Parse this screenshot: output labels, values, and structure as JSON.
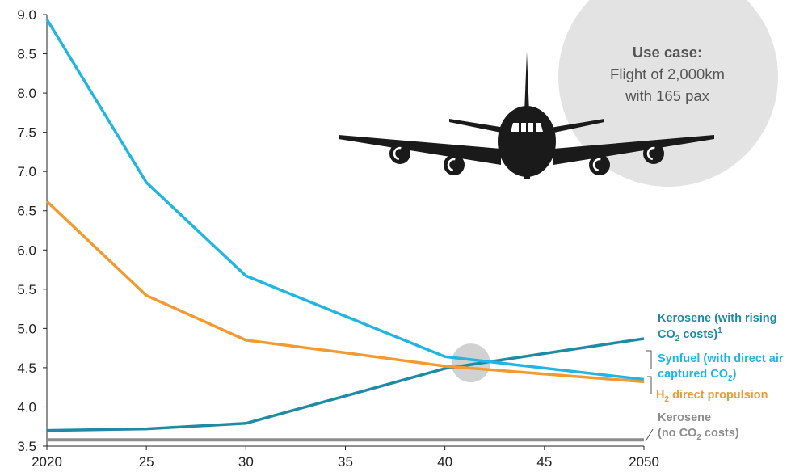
{
  "chart_data": {
    "type": "line",
    "x": [
      2020,
      2025,
      2030,
      2035,
      2040,
      2045,
      2050
    ],
    "xticks": [
      "2020",
      "25",
      "30",
      "35",
      "40",
      "45",
      "2050"
    ],
    "yticks": [
      "3.5",
      "4.0",
      "4.5",
      "5.0",
      "5.5",
      "6.0",
      "6.5",
      "7.0",
      "7.5",
      "8.0",
      "8.5",
      "9.0"
    ],
    "xlim": [
      2020,
      2050
    ],
    "ylim": [
      3.5,
      9.0
    ],
    "grid": false,
    "series": [
      {
        "key": "kerosene_no_co2",
        "color": "#8c8c8c",
        "x": [
          2020,
          2050
        ],
        "values": [
          3.58,
          3.58
        ]
      },
      {
        "key": "kerosene_rising",
        "color": "#1f8aa3",
        "x": [
          2020,
          2025,
          2030,
          2035,
          2040,
          2045,
          2050
        ],
        "values": [
          3.7,
          3.72,
          3.79,
          4.14,
          4.49,
          4.68,
          4.87
        ]
      },
      {
        "key": "synfuel",
        "color": "#22b5e0",
        "x": [
          2020,
          2025,
          2030,
          2040,
          2050
        ],
        "values": [
          8.94,
          6.86,
          5.67,
          4.64,
          4.35
        ]
      },
      {
        "key": "h2",
        "color": "#f29a30",
        "x": [
          2020,
          2025,
          2030,
          2035,
          2040,
          2045,
          2050
        ],
        "values": [
          6.62,
          5.42,
          4.85,
          4.69,
          4.52,
          4.42,
          4.32
        ]
      }
    ],
    "legend": {
      "kerosene_rising_line1": "Kerosene (with rising",
      "kerosene_rising_co": "CO",
      "kerosene_rising_sub": "2",
      "kerosene_rising_tail": " costs)",
      "kerosene_rising_sup": "1",
      "synfuel_line1": "Synfuel (with direct air",
      "synfuel_line2a": "captured CO",
      "synfuel_line2_sub": "2",
      "synfuel_line2b": ")",
      "h2_h": "H",
      "h2_sub": "2",
      "h2_tail": " direct propulsion",
      "kerosene_none_line1": "Kerosene",
      "kerosene_none_open": "(no CO",
      "kerosene_none_sub": "2",
      "kerosene_none_tail": " costs)"
    },
    "callout": {
      "heading": "Use case:",
      "line1": "Flight of 2,000km",
      "line2": "with 165 pax"
    },
    "colors": {
      "kerosene_no_co2": "#8c8c8c",
      "kerosene_rising": "#1f8aa3",
      "synfuel": "#22b5e0",
      "h2": "#f29a30",
      "highlight": "#c9c9c9",
      "callout_bg": "#e3e3e3",
      "aircraft": "#1a1a1a"
    },
    "highlight_point": {
      "x": 2041.3,
      "y": 4.56
    }
  }
}
